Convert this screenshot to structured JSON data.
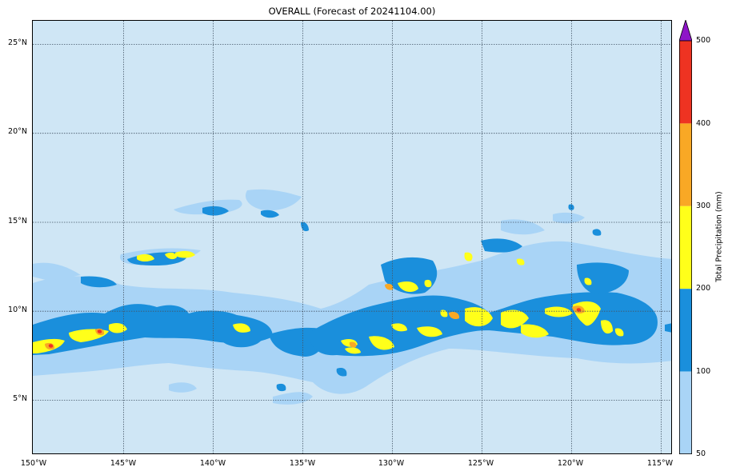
{
  "title": "OVERALL (Forecast of 20241104.00)",
  "map": {
    "lon_range": [
      -150,
      -114.3
    ],
    "lat_range": [
      2,
      26.4
    ],
    "lat_labels": [
      {
        "value": 25,
        "text": "25°N"
      },
      {
        "value": 20,
        "text": "20°N"
      },
      {
        "value": 15,
        "text": "15°N"
      },
      {
        "value": 10,
        "text": "10°N"
      },
      {
        "value": 5,
        "text": "5°N"
      }
    ],
    "lon_labels": [
      {
        "value": -150,
        "text": "150°W"
      },
      {
        "value": -145,
        "text": "145°W"
      },
      {
        "value": -140,
        "text": "140°W"
      },
      {
        "value": -135,
        "text": "135°W"
      },
      {
        "value": -130,
        "text": "130°W"
      },
      {
        "value": -125,
        "text": "125°W"
      },
      {
        "value": -120,
        "text": "120°W"
      },
      {
        "value": -115,
        "text": "115°W"
      }
    ],
    "gridlines": "dotted",
    "background_color": "#cfe6f5"
  },
  "colorbar": {
    "label": "Total Precipitation (mm)",
    "levels": [
      {
        "text": "50",
        "value": 50
      },
      {
        "text": "100",
        "value": 100
      },
      {
        "text": "200",
        "value": 200
      },
      {
        "text": "300",
        "value": 300
      },
      {
        "text": "400",
        "value": 400
      },
      {
        "text": "500",
        "value": 500
      }
    ],
    "colors": [
      "#a9d4f6",
      "#1a8fdc",
      "#ffff1a",
      "#f9a825",
      "#ee3322"
    ],
    "extend_color": "#8e15c8"
  }
}
